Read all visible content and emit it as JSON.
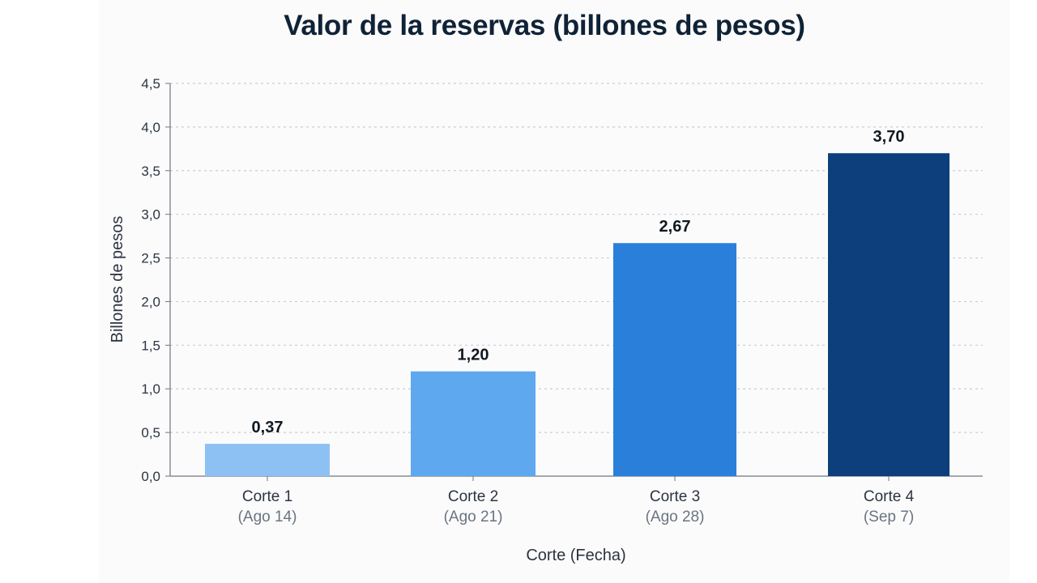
{
  "chart_data": {
    "type": "bar",
    "title": "Valor de la reservas (billones de pesos)",
    "xlabel": "Corte (Fecha)",
    "ylabel": "Billones de pesos",
    "ylim": [
      0,
      4.5
    ],
    "yticks": [
      "0,0",
      "0,5",
      "1,0",
      "1,5",
      "2,0",
      "2,5",
      "3,0",
      "3,5",
      "4,0",
      "4,5"
    ],
    "categories": [
      {
        "name": "Corte 1",
        "date": "(Ago 14)"
      },
      {
        "name": "Corte 2",
        "date": "(Ago 21)"
      },
      {
        "name": "Corte 3",
        "date": "(Ago 28)"
      },
      {
        "name": "Corte 4",
        "date": "(Sep 7)"
      }
    ],
    "values": [
      0.37,
      1.2,
      2.67,
      3.7
    ],
    "value_labels": [
      "0,37",
      "1,20",
      "2,67",
      "3,70"
    ],
    "bar_colors": [
      "#8dc1f4",
      "#5ea8f0",
      "#2a7fdb",
      "#0c3f7c"
    ],
    "grid": true,
    "legend": "none"
  }
}
